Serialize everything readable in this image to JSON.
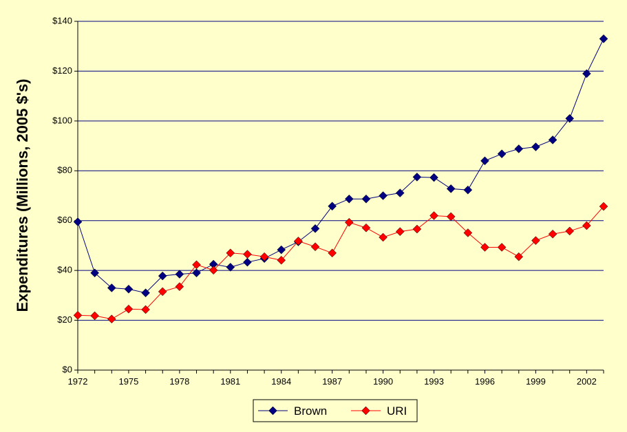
{
  "chart_data": {
    "type": "line",
    "title": "",
    "xlabel": "",
    "ylabel": "Expenditures (Millions, 2005 $'s)",
    "x": [
      1972,
      1973,
      1974,
      1975,
      1976,
      1977,
      1978,
      1979,
      1980,
      1981,
      1982,
      1983,
      1984,
      1985,
      1986,
      1987,
      1988,
      1989,
      1990,
      1991,
      1992,
      1993,
      1994,
      1995,
      1996,
      1997,
      1998,
      1999,
      2000,
      2001,
      2002,
      2003
    ],
    "xlim": [
      1972,
      2003
    ],
    "ylim": [
      0,
      140
    ],
    "x_ticks": [
      "1972",
      "1975",
      "1978",
      "1981",
      "1984",
      "1987",
      "1990",
      "1993",
      "1996",
      "1999",
      "2002"
    ],
    "y_ticks": [
      "$0",
      "$20",
      "$40",
      "$60",
      "$80",
      "$100",
      "$120",
      "$140"
    ],
    "grid": "horizontal",
    "legend_position": "bottom",
    "colors": {
      "background": "#ffffcc",
      "plot_area": "#ffffcc",
      "gridline": "#000080",
      "axis": "#000000"
    },
    "series": [
      {
        "name": "Brown",
        "color": "#000080",
        "marker": "diamond",
        "values": [
          59.5,
          39,
          33,
          32.5,
          31,
          37.8,
          38.5,
          39,
          42.5,
          41.3,
          43.3,
          44.8,
          48.3,
          51.5,
          56.8,
          65.8,
          68.7,
          68.7,
          70,
          71.1,
          77.5,
          77.3,
          72.8,
          72.3,
          84,
          86.8,
          88.8,
          89.6,
          92.4,
          101,
          119,
          133
        ]
      },
      {
        "name": "URI",
        "color": "#ff0000",
        "marker": "diamond",
        "values": [
          22,
          21.8,
          20.5,
          24.5,
          24.3,
          31.5,
          33.5,
          42.3,
          40.1,
          47,
          46.5,
          45.5,
          44.1,
          51.8,
          49.5,
          47,
          59.3,
          57.1,
          53.3,
          55.6,
          56.6,
          62,
          61.6,
          55.1,
          49.3,
          49.3,
          45.5,
          52,
          54.6,
          55.8,
          58,
          65.7
        ]
      }
    ]
  }
}
